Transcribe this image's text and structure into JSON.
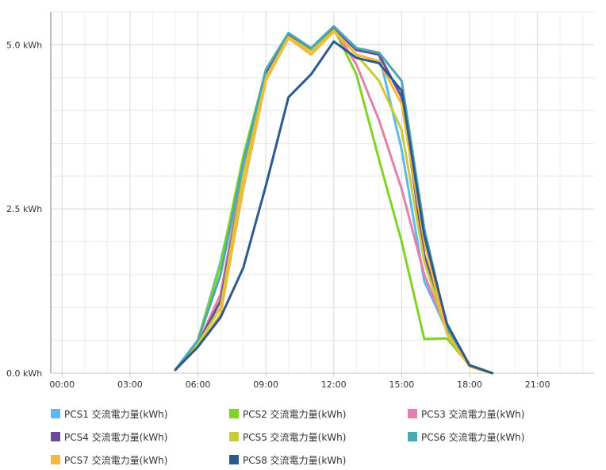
{
  "chart_data": {
    "type": "line",
    "x_ticks": [
      "00:00",
      "03:00",
      "06:00",
      "09:00",
      "12:00",
      "15:00",
      "18:00",
      "21:00"
    ],
    "y_ticks": [
      {
        "value": 0,
        "label": "0.0 kWh"
      },
      {
        "value": 2.5,
        "label": "2.5 kWh"
      },
      {
        "value": 5,
        "label": "5.0 kWh"
      }
    ],
    "xlim": [
      -0.5,
      23.5
    ],
    "ylim": [
      0,
      5.5
    ],
    "grid": true,
    "legend_position": "bottom",
    "series": [
      {
        "name": "PCS1 交流電力量(kWh)",
        "color": "#5bb8f0",
        "x": [
          5,
          6,
          7,
          8,
          9,
          10,
          11,
          12,
          13,
          14,
          15,
          16,
          17,
          18,
          19
        ],
        "y": [
          0.05,
          0.5,
          1.7,
          3.2,
          4.6,
          5.15,
          4.95,
          5.28,
          4.95,
          4.85,
          3.4,
          1.4,
          0.65,
          0.12,
          0.0
        ]
      },
      {
        "name": "PCS2 交流電力量(kWh)",
        "color": "#7fd321",
        "x": [
          5,
          6,
          7,
          8,
          9,
          10,
          11,
          12,
          13,
          14,
          15,
          16,
          17,
          18,
          19
        ],
        "y": [
          0.05,
          0.5,
          1.65,
          3.3,
          4.6,
          5.15,
          4.92,
          5.25,
          4.55,
          3.25,
          2.0,
          0.52,
          0.53,
          0.12,
          0.0
        ]
      },
      {
        "name": "PCS3 交流電力量(kWh)",
        "color": "#e57fae",
        "x": [
          5,
          6,
          7,
          8,
          9,
          10,
          11,
          12,
          13,
          14,
          15,
          16,
          17,
          18,
          19
        ],
        "y": [
          0.05,
          0.45,
          1.2,
          3.1,
          4.55,
          5.15,
          4.92,
          5.25,
          4.7,
          3.85,
          2.8,
          1.5,
          0.65,
          0.12,
          0.0
        ]
      },
      {
        "name": "PCS4 交流電力量(kWh)",
        "color": "#6b4c9a",
        "x": [
          5,
          6,
          7,
          8,
          9,
          10,
          11,
          12,
          13,
          14,
          15,
          16,
          17,
          18,
          19
        ],
        "y": [
          0.05,
          0.45,
          1.1,
          3.0,
          4.55,
          5.15,
          4.92,
          5.25,
          4.92,
          4.85,
          4.2,
          1.8,
          0.68,
          0.12,
          0.0
        ]
      },
      {
        "name": "PCS5 交流電力量(kWh)",
        "color": "#c8cc3a",
        "x": [
          5,
          6,
          7,
          8,
          9,
          10,
          11,
          12,
          13,
          14,
          15,
          16,
          17,
          18,
          19
        ],
        "y": [
          0.05,
          0.45,
          1.0,
          3.0,
          4.5,
          5.12,
          4.9,
          5.22,
          4.85,
          4.45,
          3.7,
          1.7,
          0.62,
          0.12,
          0.0
        ]
      },
      {
        "name": "PCS6 交流電力量(kWh)",
        "color": "#4aa9b5",
        "x": [
          5,
          6,
          7,
          8,
          9,
          10,
          11,
          12,
          13,
          14,
          15,
          16,
          17,
          18,
          19
        ],
        "y": [
          0.05,
          0.5,
          1.5,
          3.2,
          4.62,
          5.18,
          4.95,
          5.28,
          4.95,
          4.88,
          4.45,
          2.2,
          0.7,
          0.12,
          0.0
        ]
      },
      {
        "name": "PCS7 交流電力量(kWh)",
        "color": "#f5b93a",
        "x": [
          5,
          6,
          7,
          8,
          9,
          10,
          11,
          12,
          13,
          14,
          15,
          16,
          17,
          18,
          19
        ],
        "y": [
          0.05,
          0.4,
          0.9,
          2.8,
          4.45,
          5.1,
          4.85,
          5.2,
          4.85,
          4.75,
          4.1,
          2.0,
          0.6,
          0.1,
          0.0
        ]
      },
      {
        "name": "PCS8 交流電力量(kWh)",
        "color": "#2b5b8e",
        "x": [
          5,
          6,
          7,
          8,
          9,
          10,
          11,
          12,
          13,
          14,
          15,
          16,
          17,
          18,
          19
        ],
        "y": [
          0.05,
          0.4,
          0.85,
          1.6,
          2.85,
          4.2,
          4.55,
          5.05,
          4.8,
          4.72,
          4.3,
          2.1,
          0.75,
          0.12,
          0.0
        ]
      }
    ]
  }
}
